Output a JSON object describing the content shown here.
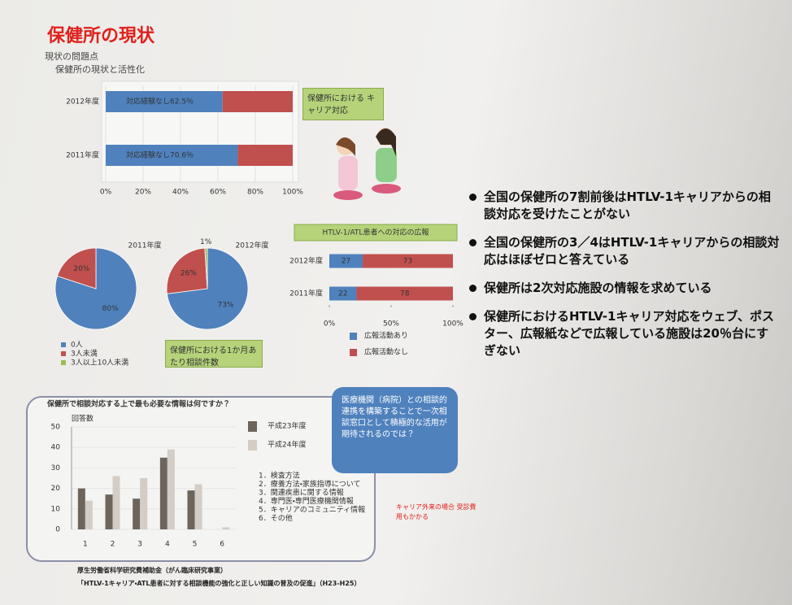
{
  "title": "保健所の現状",
  "subtitle": [
    "現状の問題点",
    "保健所の現状と活性化"
  ],
  "callout_career": "保健所における キャリア対応",
  "callout_consult": "保健所における1か月あたり相談件数",
  "bubble": "医療機関（病院）との相談的連携を構築することで一次相談窓口として積極的な活用が期待されるのでは？",
  "red_note": "キャリア外来の場合 受診費用もかかる",
  "bullets": [
    "全国の保健所の7割前後はHTLV-1キャリアからの相談対応を受けたことがない",
    "全国の保健所の3／4はHTLV-1キャリアからの相談対応はほぼゼロと答えている",
    "保健所は2次対応施設の情報を求めている",
    "保健所におけるHTLV-1キャリア対応をウェブ、ポスター、広報紙などで広報している施設は20％台にすぎない"
  ],
  "footer": [
    "厚生労働省科学研究費補助金（がん臨床研究事業）",
    "「HTLV-1キャリア・ATL患者に対する相談機能の強化と正しい知識の普及の促進」（H23-H25）"
  ],
  "chart_data": [
    {
      "type": "hbar",
      "stacked": true,
      "grid": true,
      "categories": [
        "2012年度",
        "2011年度"
      ],
      "series": [
        {
          "color": "#4f81bd",
          "values": [
            62.5,
            70.6
          ],
          "value_labels": [
            "対応経験なし62.5％",
            "対応経験なし70.6％"
          ]
        },
        {
          "color": "#c0504d",
          "values": [
            37.5,
            29.4
          ]
        }
      ],
      "xlim": [
        0,
        100
      ],
      "xticks": [
        {
          "value": 0,
          "label": "0%"
        },
        {
          "value": 20,
          "label": "20%"
        },
        {
          "value": 40,
          "label": "40%"
        },
        {
          "value": 60,
          "label": "60%"
        },
        {
          "value": 80,
          "label": "80%"
        },
        {
          "value": 100,
          "label": "100%"
        }
      ]
    },
    {
      "type": "pie",
      "title": "2011年度",
      "categories": [
        "0人",
        "3人未満",
        "3人以上10人未満"
      ],
      "colors": [
        "#4f81bd",
        "#c0504d",
        "#9bbb59"
      ],
      "values": [
        80,
        20,
        0
      ],
      "value_labels": [
        "80%",
        "20%",
        null
      ]
    },
    {
      "type": "pie",
      "title": "2012年度",
      "colors": [
        "#4f81bd",
        "#c0504d",
        "#9bbb59"
      ],
      "values": [
        73,
        26,
        1
      ],
      "value_labels": [
        "73%",
        "26%",
        "1%"
      ]
    },
    {
      "type": "hbar",
      "stacked": true,
      "show_values": true,
      "title": "HTLV-1/ATL患者への対応の広報",
      "categories": [
        "2012年度",
        "2011年度"
      ],
      "series": [
        {
          "name": "広報活動あり",
          "color": "#4f81bd",
          "values": [
            27,
            22
          ]
        },
        {
          "name": "広報活動なし",
          "color": "#c0504d",
          "values": [
            73,
            78
          ]
        }
      ],
      "xlim": [
        0,
        100
      ],
      "xticks": [
        {
          "value": 0,
          "label": "0%"
        },
        {
          "value": 50,
          "label": "50%"
        },
        {
          "value": 100,
          "label": "100%"
        }
      ]
    },
    {
      "type": "bar",
      "title": "保健所で相談対応する上で最も必要な情報は何ですか？",
      "ylabel": "回答数",
      "categories": [
        "1",
        "2",
        "3",
        "4",
        "5",
        "6"
      ],
      "series": [
        {
          "name": "平成23年度",
          "color": "#6d655c",
          "values": [
            20,
            17,
            15,
            35,
            19,
            0
          ]
        },
        {
          "name": "平成24年度",
          "color": "#d3cdc5",
          "values": [
            14,
            26,
            25,
            39,
            22,
            1
          ]
        }
      ],
      "ylim": [
        0,
        50
      ],
      "yticks": [
        0,
        10,
        20,
        30,
        40,
        50
      ],
      "notes": [
        "1．検査方法",
        "2．療養方法・家族指導について",
        "3．関連疾患に関する情報",
        "4．専門医・専門医療機関情報",
        "5．キャリアのコミュニティ情報",
        "6．その他"
      ]
    }
  ]
}
